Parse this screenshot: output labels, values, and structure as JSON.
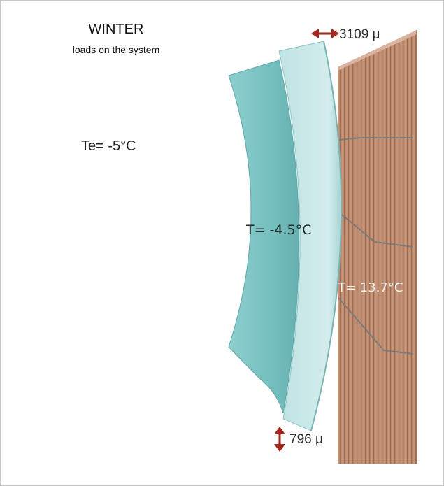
{
  "header": {
    "title": "WINTER",
    "subtitle": "loads on the system"
  },
  "labels": {
    "external_temperature": "Te= -5°C",
    "glass_temperature": "T= -4.5°C",
    "panel_temperature": "T= 13.7°C"
  },
  "displacements": {
    "horizontal": "3109 μ",
    "vertical": "796 μ"
  },
  "colors": {
    "outer_glass": "#7fc4c4",
    "inner_glass": "#c6e6e6",
    "panel": "#c08d70",
    "arrow": "#a2281f"
  },
  "icons": {
    "horizontal_arrow": "double-arrow-horizontal-icon",
    "vertical_arrow": "double-arrow-vertical-icon"
  }
}
